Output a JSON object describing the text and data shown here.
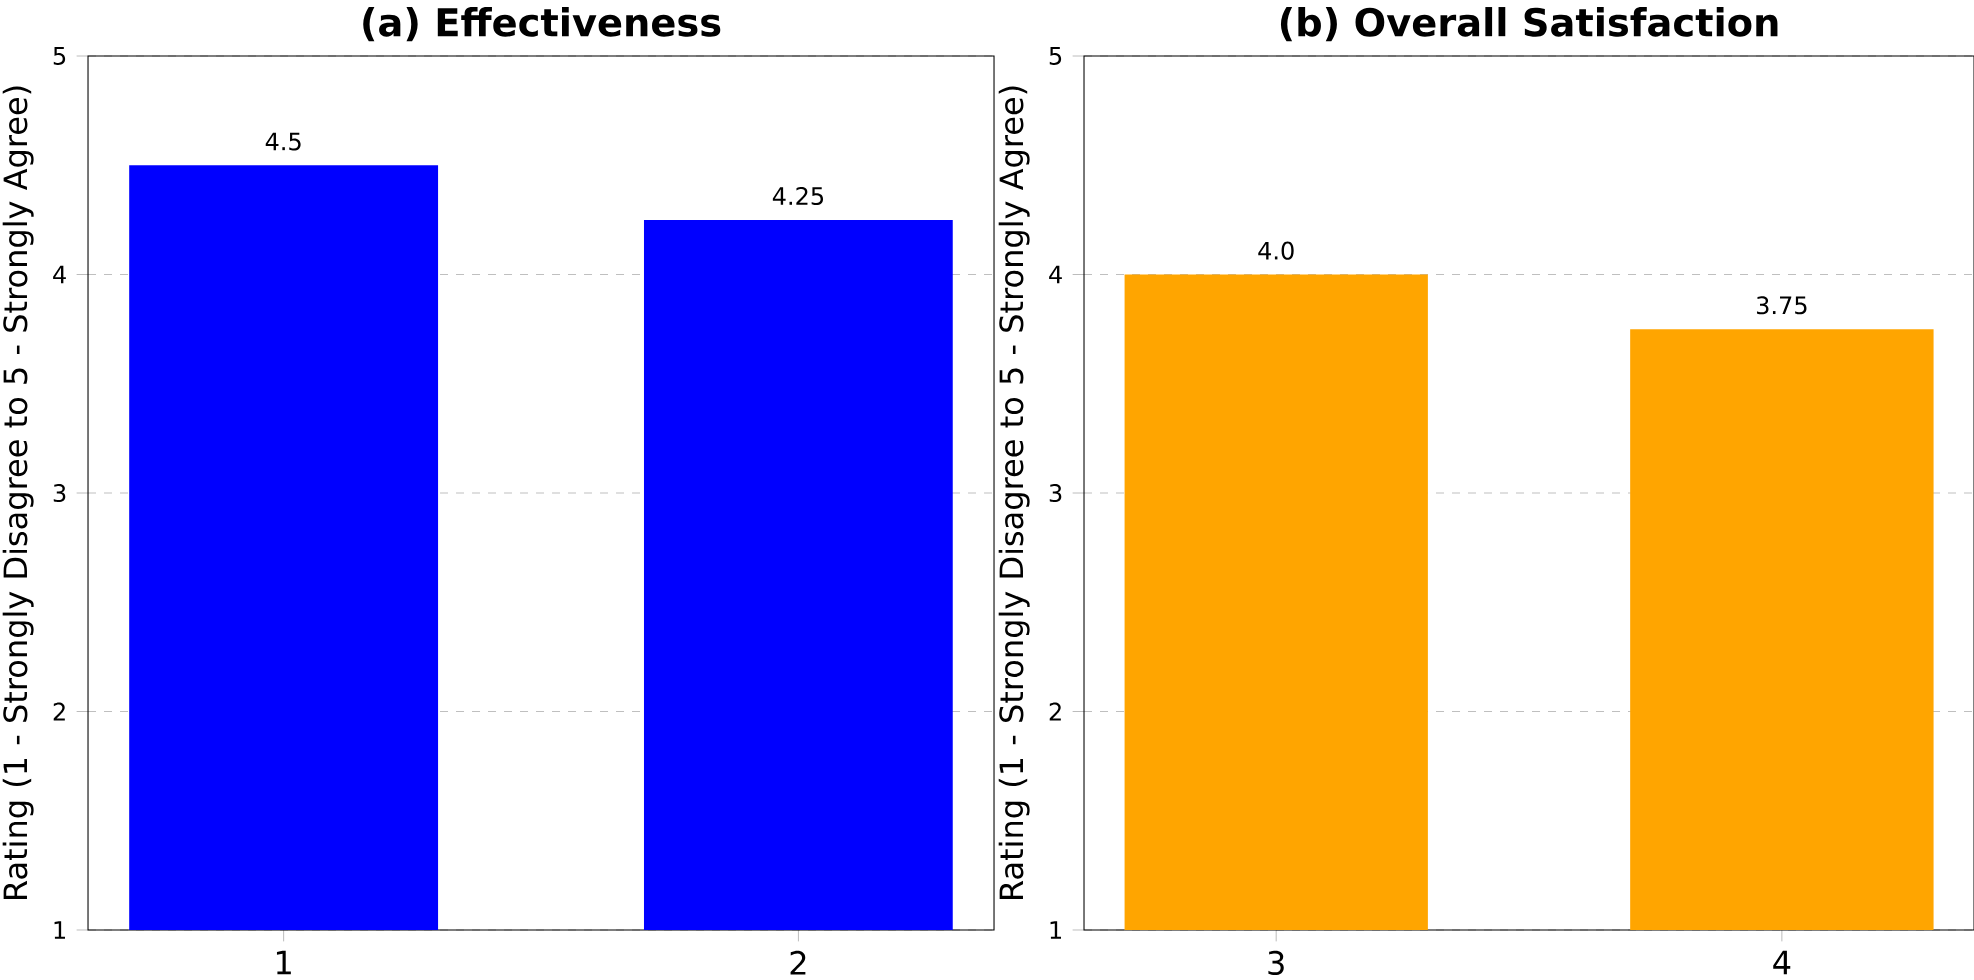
{
  "chart_data": [
    {
      "type": "bar",
      "title": "(a) Effectiveness",
      "ylabel": "Rating (1 - Strongly Disagree to 5 - Strongly Agree)",
      "categories": [
        "1",
        "2"
      ],
      "values": [
        4.5,
        4.25
      ],
      "value_labels": [
        "4.5",
        "4.25"
      ],
      "color": "#0000ff",
      "ylim": [
        1,
        5
      ],
      "yticks": [
        1,
        2,
        3,
        4,
        5
      ],
      "grid": "y"
    },
    {
      "type": "bar",
      "title": "(b) Overall Satisfaction",
      "ylabel": "Rating (1 - Strongly Disagree to 5 - Strongly Agree)",
      "categories": [
        "3",
        "4"
      ],
      "values": [
        4.0,
        3.75
      ],
      "value_labels": [
        "4.0",
        "3.75"
      ],
      "color": "#ffa500",
      "ylim": [
        1,
        5
      ],
      "yticks": [
        1,
        2,
        3,
        4,
        5
      ],
      "grid": "y"
    }
  ]
}
